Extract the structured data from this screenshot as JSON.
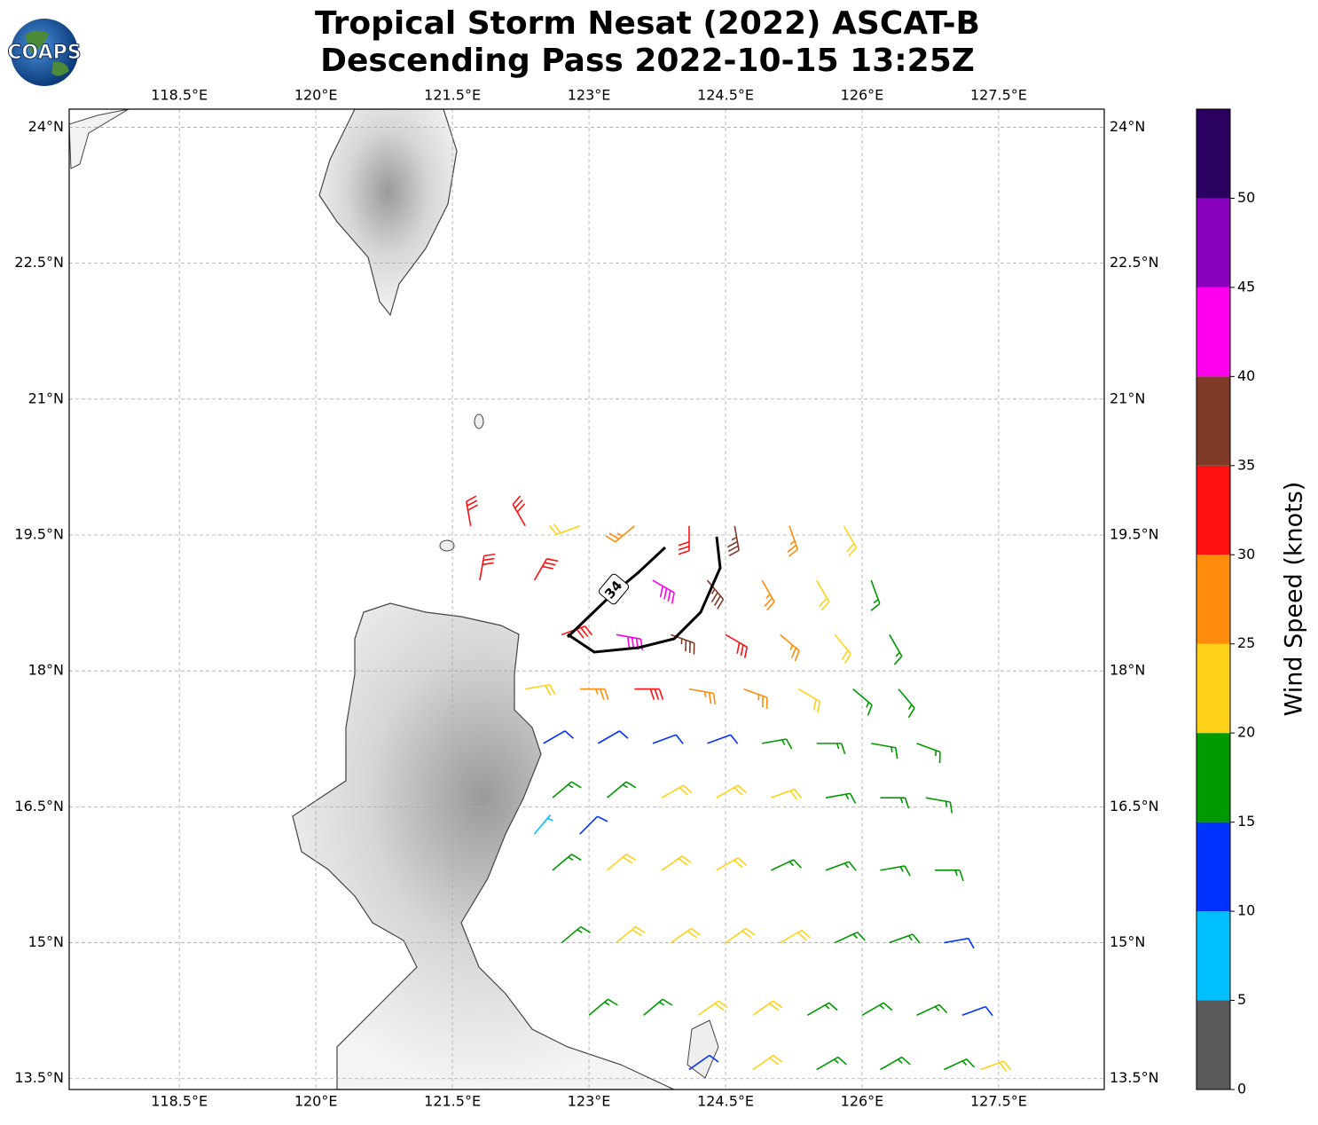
{
  "chart_data": {
    "type": "barbs",
    "title": "Tropical Storm Nesat (2022) ASCAT-B",
    "subtitle": "Descending Pass 2022-10-15 13:25Z",
    "logo_text": "COAPS",
    "contour_label": "34",
    "xlim": [
      117.29,
      128.66
    ],
    "ylim": [
      13.38,
      24.2
    ],
    "xticks": [
      {
        "value": 118.5,
        "label": "118.5°E"
      },
      {
        "value": 120,
        "label": "120°E"
      },
      {
        "value": 121.5,
        "label": "121.5°E"
      },
      {
        "value": 123,
        "label": "123°E"
      },
      {
        "value": 124.5,
        "label": "124.5°E"
      },
      {
        "value": 126,
        "label": "126°E"
      },
      {
        "value": 127.5,
        "label": "127.5°E"
      }
    ],
    "yticks": [
      {
        "value": 13.5,
        "label": "13.5°N"
      },
      {
        "value": 15,
        "label": "15°N"
      },
      {
        "value": 16.5,
        "label": "16.5°N"
      },
      {
        "value": 18,
        "label": "18°N"
      },
      {
        "value": 19.5,
        "label": "19.5°N"
      },
      {
        "value": 21,
        "label": "21°N"
      },
      {
        "value": 22.5,
        "label": "22.5°N"
      },
      {
        "value": 24,
        "label": "24°N"
      }
    ],
    "grid": true,
    "colorbar": {
      "label": "Wind Speed (knots)",
      "clim": [
        0,
        55
      ],
      "bounds": [
        0,
        5,
        10,
        15,
        20,
        25,
        30,
        35,
        40,
        45,
        50,
        55
      ],
      "colors": [
        "#595959",
        "#00bfff",
        "#0033ff",
        "#009900",
        "#ffd21a",
        "#ff8c0a",
        "#ff1010",
        "#803a28",
        "#ff00ee",
        "#8800bb",
        "#2a0060"
      ],
      "ticks": [
        0,
        5,
        10,
        15,
        20,
        25,
        30,
        35,
        40,
        45,
        50
      ]
    },
    "barbs": {
      "lon": [
        121.7,
        122.3,
        122.9,
        123.5,
        124.1,
        124.6,
        125.2,
        125.8,
        121.8,
        122.4,
        123.7,
        124.3,
        124.9,
        125.5,
        126.1,
        122.7,
        123.3,
        123.9,
        124.5,
        125.1,
        125.7,
        126.3,
        122.3,
        122.9,
        123.5,
        124.1,
        124.7,
        125.3,
        125.9,
        126.4,
        122.5,
        123.1,
        123.7,
        124.3,
        124.9,
        125.5,
        126.1,
        126.6,
        122.6,
        123.2,
        123.8,
        124.4,
        125.0,
        125.6,
        126.2,
        126.7,
        122.4,
        122.9,
        122.6,
        123.2,
        123.8,
        124.4,
        125.0,
        125.6,
        126.2,
        126.8,
        122.7,
        123.3,
        123.9,
        124.5,
        125.1,
        125.7,
        126.3,
        126.9,
        123.0,
        123.6,
        124.2,
        124.8,
        125.4,
        126.0,
        126.6,
        127.1,
        124.1,
        124.8,
        125.5,
        126.2,
        126.9,
        127.3
      ],
      "lat": [
        19.6,
        19.6,
        19.6,
        19.6,
        19.6,
        19.6,
        19.6,
        19.6,
        19.0,
        19.0,
        19.0,
        19.0,
        19.0,
        19.0,
        19.0,
        18.4,
        18.4,
        18.4,
        18.4,
        18.4,
        18.4,
        18.4,
        17.8,
        17.8,
        17.8,
        17.8,
        17.8,
        17.8,
        17.8,
        17.8,
        17.2,
        17.2,
        17.2,
        17.2,
        17.2,
        17.2,
        17.2,
        17.2,
        16.6,
        16.6,
        16.6,
        16.6,
        16.6,
        16.6,
        16.6,
        16.6,
        16.2,
        16.2,
        15.8,
        15.8,
        15.8,
        15.8,
        15.8,
        15.8,
        15.8,
        15.8,
        15.0,
        15.0,
        15.0,
        15.0,
        15.0,
        15.0,
        15.0,
        15.0,
        14.2,
        14.2,
        14.2,
        14.2,
        14.2,
        14.2,
        14.2,
        14.2,
        13.6,
        13.6,
        13.6,
        13.6,
        13.6,
        13.6
      ],
      "speed": [
        32,
        33,
        24,
        27,
        33,
        37,
        27,
        22,
        33,
        32,
        43,
        37,
        28,
        23,
        18,
        33,
        44,
        38,
        34,
        27,
        22,
        17,
        24,
        27,
        32,
        29,
        25,
        21,
        19,
        17,
        12,
        12,
        13,
        13,
        18,
        18,
        17,
        17,
        18,
        17,
        22,
        22,
        22,
        18,
        17,
        17,
        8,
        12,
        18,
        22,
        22,
        22,
        18,
        17,
        17,
        17,
        19,
        22,
        22,
        22,
        22,
        18,
        17,
        13,
        17,
        18,
        22,
        22,
        18,
        17,
        17,
        13,
        13,
        22,
        18,
        17,
        17,
        22
      ],
      "direction": [
        350,
        330,
        250,
        230,
        180,
        170,
        160,
        150,
        10,
        30,
        120,
        140,
        150,
        150,
        160,
        70,
        100,
        110,
        120,
        130,
        140,
        150,
        80,
        90,
        90,
        100,
        110,
        120,
        130,
        140,
        60,
        60,
        70,
        70,
        80,
        90,
        100,
        110,
        50,
        50,
        60,
        60,
        70,
        80,
        90,
        100,
        40,
        45,
        50,
        50,
        55,
        60,
        65,
        70,
        80,
        90,
        50,
        50,
        55,
        55,
        60,
        65,
        70,
        80,
        50,
        50,
        55,
        55,
        60,
        60,
        65,
        70,
        55,
        55,
        60,
        60,
        65,
        70
      ]
    }
  }
}
